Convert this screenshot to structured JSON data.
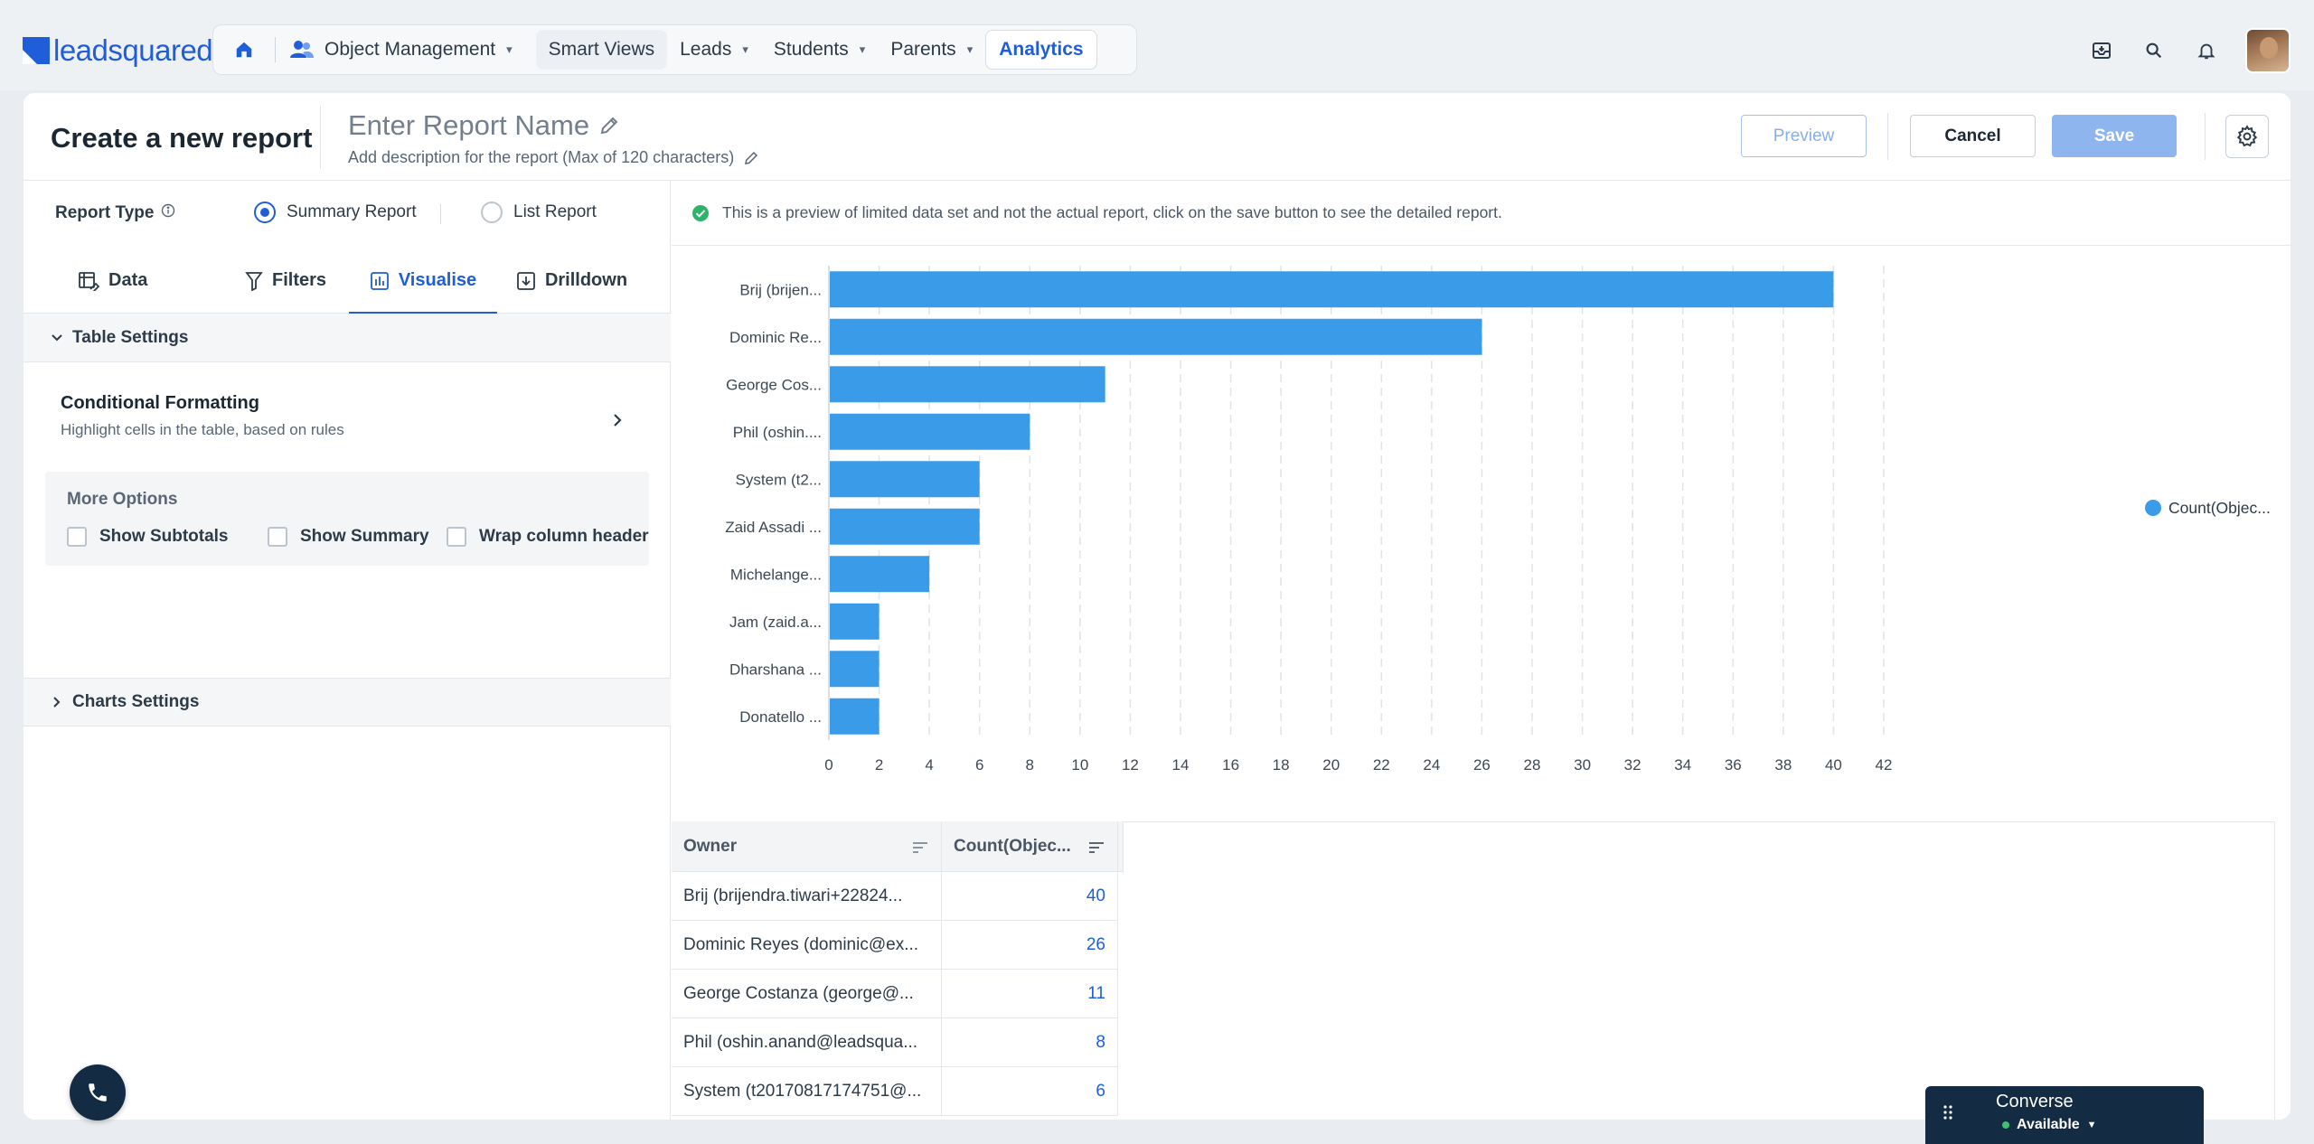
{
  "brand": {
    "logo_text": "leadsquared"
  },
  "nav": {
    "object_management": "Object Management",
    "items": [
      "Smart Views",
      "Leads",
      "Students",
      "Parents"
    ],
    "active": "Analytics"
  },
  "header": {
    "title": "Create a new report",
    "report_name_placeholder": "Enter Report Name",
    "description_placeholder": "Add description for the report (Max of 120 characters)",
    "preview_label": "Preview",
    "cancel_label": "Cancel",
    "save_label": "Save"
  },
  "left_panel": {
    "report_type_label": "Report Type",
    "report_types": [
      "Summary Report",
      "List Report"
    ],
    "selected_report_type": "Summary Report",
    "tabs": [
      "Data",
      "Filters",
      "Visualise",
      "Drilldown"
    ],
    "active_tab": "Visualise",
    "table_settings": "Table Settings",
    "conditional_formatting_title": "Conditional Formatting",
    "conditional_formatting_sub": "Highlight cells in the table, based on rules",
    "more_options_title": "More Options",
    "checkboxes": [
      "Show Subtotals",
      "Show Summary",
      "Wrap column header"
    ],
    "charts_settings": "Charts Settings"
  },
  "notice": "This is a preview of limited data set and not the actual report, click on the save button to see the detailed report.",
  "chart_data": {
    "type": "bar",
    "orientation": "horizontal",
    "categories": [
      "Brij (brijen...",
      "Dominic Re...",
      "George Cos...",
      "Phil (oshin....",
      "System (t2...",
      "Zaid Assadi ...",
      "Michelange...",
      "Jam (zaid.a...",
      "Dharshana ...",
      "Donatello ..."
    ],
    "series": [
      {
        "name": "Count(Objec...",
        "values": [
          40,
          26,
          11,
          8,
          6,
          6,
          4,
          2,
          2,
          2
        ]
      }
    ],
    "xlim": [
      0,
      42
    ],
    "x_ticks": [
      0,
      2,
      4,
      6,
      8,
      10,
      12,
      14,
      16,
      18,
      20,
      22,
      24,
      26,
      28,
      30,
      32,
      34,
      36,
      38,
      40,
      42
    ],
    "grid": "vertical dashed",
    "legend_position": "right",
    "bar_color": "#3a9be8"
  },
  "table": {
    "columns": [
      "Owner",
      "Count(Objec..."
    ],
    "rows": [
      [
        "Brij (brijendra.tiwari+22824...",
        "40"
      ],
      [
        "Dominic Reyes (dominic@ex...",
        "26"
      ],
      [
        "George Costanza (george@...",
        "11"
      ],
      [
        "Phil (oshin.anand@leadsqua...",
        "8"
      ],
      [
        "System (t20170817174751@...",
        "6"
      ]
    ]
  },
  "converse": {
    "title": "Converse",
    "status": "Available"
  }
}
